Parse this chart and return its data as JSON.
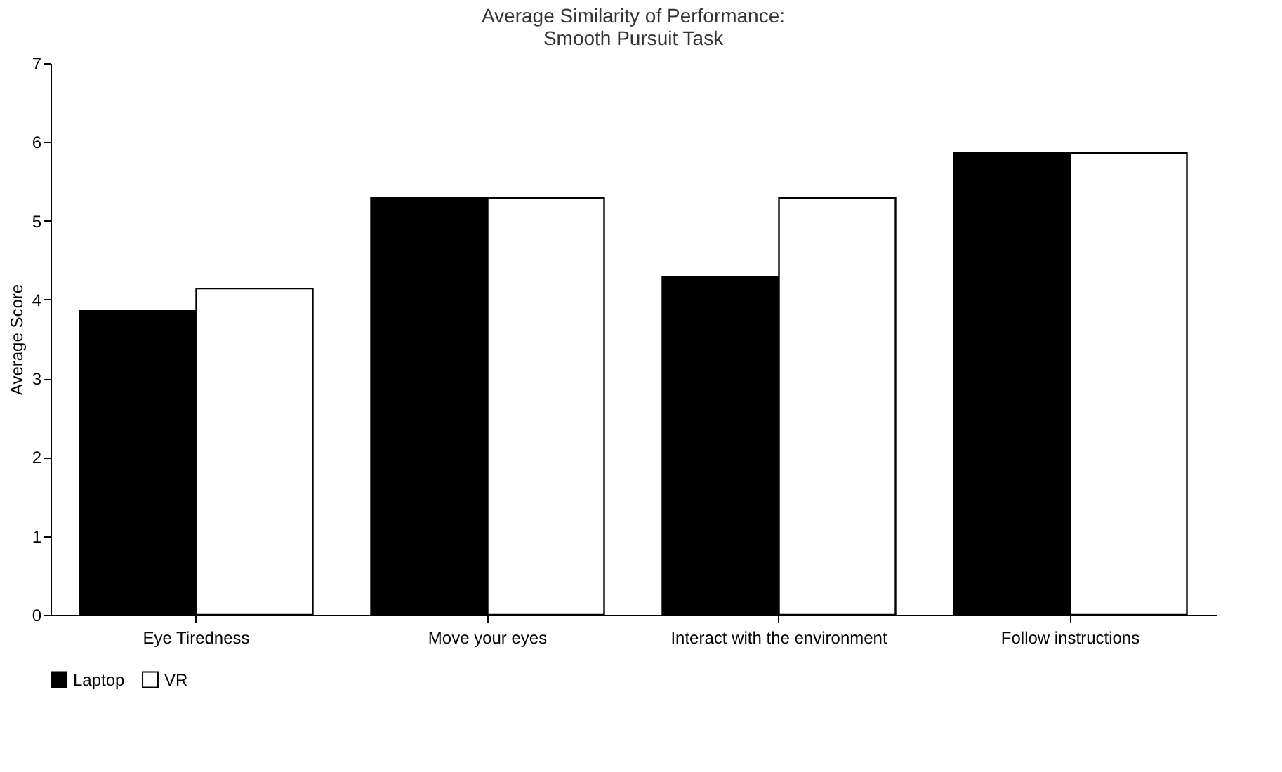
{
  "chart_data": {
    "type": "bar",
    "title": "Average Similarity of Performance:\nSmooth Pursuit Task",
    "ylabel": "Average Score",
    "categories": [
      "Eye Tiredness",
      "Move your eyes",
      "Interact with the environment",
      "Follow instructions"
    ],
    "series": [
      {
        "name": "Laptop",
        "color": "#000000",
        "values": [
          3.86,
          5.29,
          4.29,
          5.86
        ]
      },
      {
        "name": "VR",
        "color": "#ffffff",
        "values": [
          4.14,
          5.29,
          5.29,
          5.86
        ]
      }
    ],
    "ylim": [
      0,
      7
    ],
    "yticks": [
      0,
      1,
      2,
      3,
      4,
      5,
      6,
      7
    ],
    "grid": false,
    "legend": "bottom"
  }
}
